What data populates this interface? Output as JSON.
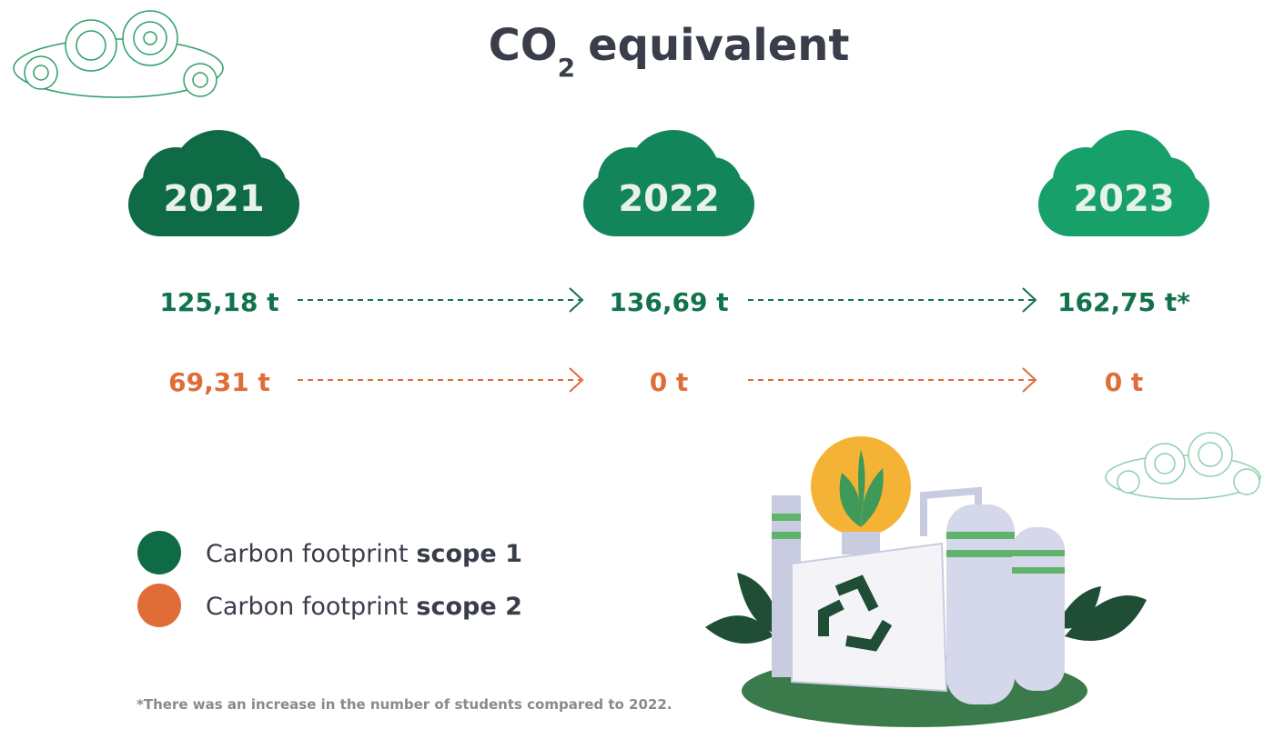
{
  "title": {
    "main": "CO",
    "subscript": "2",
    "rest": "equivalent"
  },
  "years": [
    {
      "label": "2021",
      "color": "#0f6b45"
    },
    {
      "label": "2022",
      "color": "#12855a"
    },
    {
      "label": "2023",
      "color": "#17a06a"
    }
  ],
  "scope1": {
    "color": "#12734b",
    "values": [
      "125,18 t",
      "136,69 t",
      "162,75 t*"
    ]
  },
  "scope2": {
    "color": "#e06c38",
    "values": [
      "69,31 t",
      "0 t",
      "0 t"
    ]
  },
  "legend": [
    {
      "label": "Carbon footprint",
      "bold": "scope 1",
      "color": "#0f6b45"
    },
    {
      "label": "Carbon footprint",
      "bold": "scope 2",
      "color": "#e06c38"
    }
  ],
  "footnote": "*There was an increase in the number of students compared to 2022."
}
